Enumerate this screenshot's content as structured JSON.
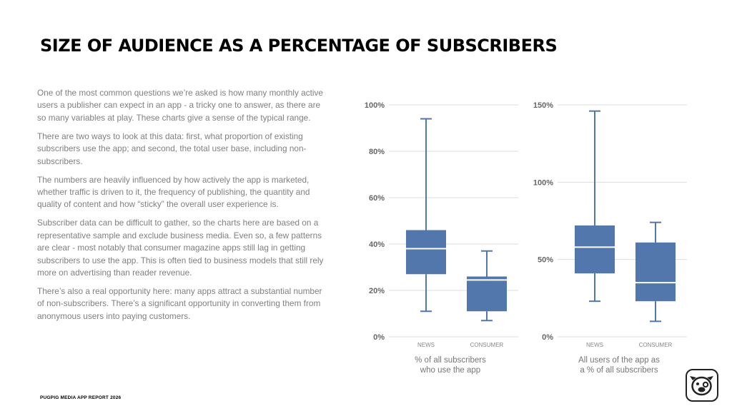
{
  "title": "SIZE OF AUDIENCE AS A PERCENTAGE OF SUBSCRIBERS",
  "paragraphs": [
    "One of the most common questions we’re asked is how many monthly active users a publisher can expect in an app - a tricky one to answer, as there are so many variables at play. These charts give a sense of the typical range.",
    "There are two ways to look at this data: first, what proportion of existing subscribers use the app; and second, the total user base, including non-subscribers.",
    "The numbers are heavily influenced by how actively the app is marketed, whether traffic is driven to it, the frequency of publishing, the quantity and quality of content and how “sticky” the overall user experience is.",
    "Subscriber data can be difficult to gather, so the charts here are based on a representative sample and exclude business media. Even so, a few patterns are clear - most notably that consumer magazine apps still lag in getting subscribers to use the app. This is often tied to business models that still rely more on advertising than reader revenue.",
    "There’s also a real opportunity here: many apps attract a substantial number of non-subscribers. There’s a significant opportunity in converting them from anonymous users into paying customers."
  ],
  "footer": "PUGPIG MEDIA APP REPORT 2026",
  "colors": {
    "box": "#5277ac",
    "median": "#ffffff",
    "grid": "#dddddd",
    "tick": "#666666"
  },
  "logo_icon": "pug-face-icon",
  "chart_data": [
    {
      "type": "box",
      "caption": [
        "% of all subscribers",
        "who use the app"
      ],
      "categories": [
        "NEWS",
        "CONSUMER"
      ],
      "ylim": [
        0,
        100
      ],
      "yticks": [
        0,
        20,
        40,
        60,
        80,
        100
      ],
      "ytick_labels": [
        "0%",
        "20%",
        "40%",
        "60%",
        "80%",
        "100%"
      ],
      "grid": true,
      "boxes": [
        {
          "category": "NEWS",
          "min": 11,
          "q1": 27,
          "median": 38,
          "q3": 46,
          "max": 94
        },
        {
          "category": "CONSUMER",
          "min": 7,
          "q1": 11,
          "median": 24.5,
          "q3": 26,
          "max": 37
        }
      ]
    },
    {
      "type": "box",
      "caption": [
        "All users of the app as",
        "a % of all subscribers"
      ],
      "categories": [
        "NEWS",
        "CONSUMER"
      ],
      "ylim": [
        0,
        150
      ],
      "yticks": [
        0,
        50,
        100,
        150
      ],
      "ytick_labels": [
        "0%",
        "50%",
        "100%",
        "150%"
      ],
      "grid": true,
      "boxes": [
        {
          "category": "NEWS",
          "min": 23,
          "q1": 41,
          "median": 58,
          "q3": 72,
          "max": 146
        },
        {
          "category": "CONSUMER",
          "min": 10,
          "q1": 23,
          "median": 35,
          "q3": 61,
          "max": 74
        }
      ]
    }
  ]
}
